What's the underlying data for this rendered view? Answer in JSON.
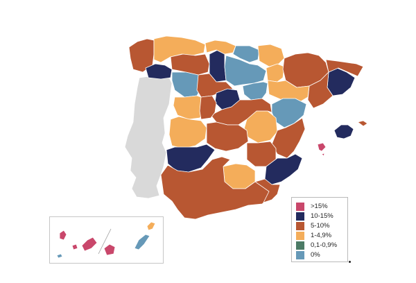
{
  "colors": {
    "gt15": "#c9476b",
    "p10_15": "#232b5e",
    "p5_10": "#b85732",
    "p1_4_9": "#f4ad5a",
    "p0_1_0_9": "#4c7b66",
    "p0": "#6699b8",
    "portugal": "#d9d9d9"
  },
  "legend": {
    "items": [
      {
        "label": ">15%",
        "color": "#c9476b"
      },
      {
        "label": "10-15%",
        "color": "#232b5e"
      },
      {
        "label": "5-10%",
        "color": "#b85732"
      },
      {
        "label": "1-4,9%",
        "color": "#f4ad5a"
      },
      {
        "label": "0,1-0,9%",
        "color": "#4c7b66"
      },
      {
        "label": "0%",
        "color": "#6699b8"
      }
    ]
  },
  "regions": {
    "portugal": "none",
    "galicia_north": "5-10%",
    "galicia_west": "10-15%",
    "asturias": "1-4,9%",
    "cantabria": "1-4,9%",
    "basque": "0%",
    "navarra": "1-4,9%",
    "aragon_north": "5-10%",
    "catalonia_barcelona": "10-15%",
    "catalonia_tarragona": "5-10%",
    "leon": "5-10%",
    "palencia": "10-15%",
    "burgos": "0%",
    "zamora": "0%",
    "valladolid": "5-10%",
    "soria": "0%",
    "segovia": "10-15%",
    "la_rioja": "1-4,9%",
    "zaragoza": "1-4,9%",
    "teruel": "0%",
    "salamanca": "1-4,9%",
    "caceres": "1-4,9%",
    "badajoz": "10-15%",
    "madrid": "5-10%",
    "cuenca": "1-4,9%",
    "valencia": "5-10%",
    "murcia": "10-15%",
    "jaen_granada": "1-4,9%",
    "andalusia": "5-10%",
    "mallorca": "10-15%",
    "menorca": "5-10%",
    "ibiza": ">15%",
    "canary_west": ">15%",
    "canary_east": "0%",
    "lanzarote": "1-4,9%"
  }
}
